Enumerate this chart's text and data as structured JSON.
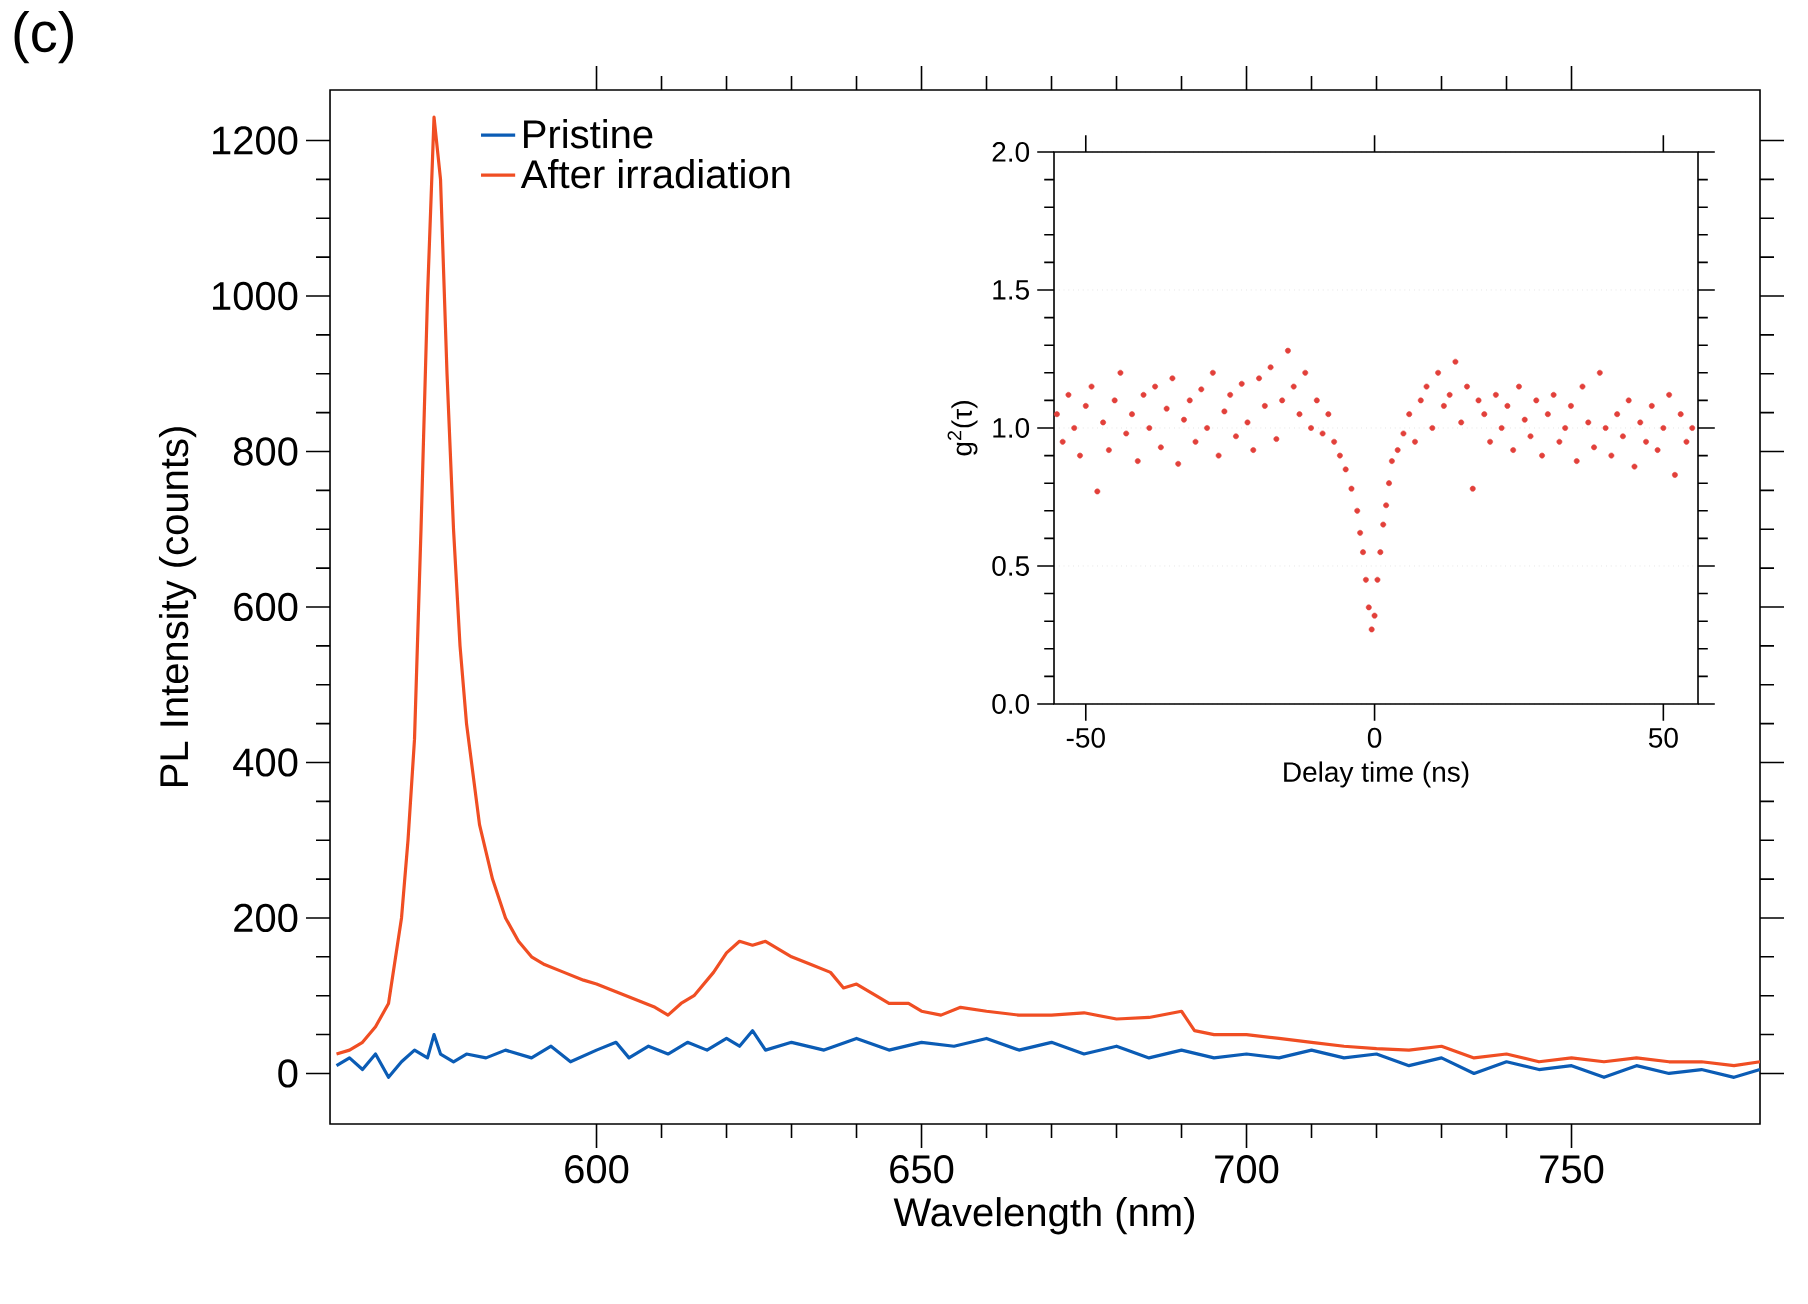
{
  "chart_data": [
    {
      "type": "line",
      "xlabel": "Wavelength (nm)",
      "ylabel": "PL Intensity (counts)",
      "annotations": [
        "(c)"
      ],
      "xlim": [
        559,
        779
      ],
      "ylim": [
        -65,
        1265
      ],
      "xticks": [
        600,
        650,
        700,
        750
      ],
      "yticks": [
        0,
        200,
        400,
        600,
        800,
        1000,
        1200
      ],
      "legend": "top left",
      "series": [
        {
          "name": "Pristine",
          "color": "#0b5cb5",
          "x": [
            560,
            562,
            564,
            566,
            568,
            570,
            572,
            574,
            575,
            576,
            578,
            580,
            583,
            586,
            590,
            593,
            596,
            600,
            603,
            605,
            608,
            611,
            614,
            617,
            620,
            622,
            624,
            626,
            630,
            635,
            640,
            645,
            650,
            655,
            660,
            665,
            670,
            675,
            680,
            685,
            690,
            695,
            700,
            705,
            710,
            715,
            720,
            725,
            730,
            735,
            740,
            745,
            750,
            755,
            760,
            765,
            770,
            775,
            779
          ],
          "values": [
            10,
            20,
            5,
            25,
            -5,
            15,
            30,
            20,
            50,
            25,
            15,
            25,
            20,
            30,
            20,
            35,
            15,
            30,
            40,
            20,
            35,
            25,
            40,
            30,
            45,
            35,
            55,
            30,
            40,
            30,
            45,
            30,
            40,
            35,
            45,
            30,
            40,
            25,
            35,
            20,
            30,
            20,
            25,
            20,
            30,
            20,
            25,
            10,
            20,
            0,
            15,
            5,
            10,
            -5,
            10,
            0,
            5,
            -5,
            5
          ]
        },
        {
          "name": "After irradiation",
          "color": "#f04e23",
          "x": [
            560,
            562,
            564,
            566,
            568,
            570,
            571,
            572,
            573,
            574,
            575,
            576,
            577,
            578,
            579,
            580,
            582,
            584,
            586,
            588,
            590,
            592,
            595,
            598,
            600,
            603,
            606,
            609,
            611,
            613,
            615,
            618,
            620,
            622,
            624,
            626,
            628,
            630,
            633,
            636,
            638,
            640,
            643,
            645,
            648,
            650,
            653,
            656,
            660,
            665,
            670,
            675,
            680,
            685,
            690,
            692,
            695,
            700,
            705,
            710,
            715,
            720,
            725,
            730,
            735,
            740,
            745,
            750,
            755,
            760,
            765,
            770,
            775,
            779
          ],
          "values": [
            25,
            30,
            40,
            60,
            90,
            200,
            300,
            430,
            700,
            1000,
            1230,
            1150,
            900,
            700,
            550,
            450,
            320,
            250,
            200,
            170,
            150,
            140,
            130,
            120,
            115,
            105,
            95,
            85,
            75,
            90,
            100,
            130,
            155,
            170,
            165,
            170,
            160,
            150,
            140,
            130,
            110,
            115,
            100,
            90,
            90,
            80,
            75,
            85,
            80,
            75,
            75,
            78,
            70,
            72,
            80,
            55,
            50,
            50,
            45,
            40,
            35,
            32,
            30,
            35,
            20,
            25,
            15,
            20,
            15,
            20,
            15,
            15,
            10,
            15
          ]
        }
      ]
    },
    {
      "type": "scatter",
      "xlabel": "Delay time (ns)",
      "ylabel": "g$^{2}$(τ)",
      "marker": "circle",
      "grid": "y",
      "xlim": [
        -55.5,
        56
      ],
      "ylim": [
        0,
        2
      ],
      "xticks": [
        -50,
        0,
        50
      ],
      "yticks": [
        {
          "value": 0,
          "label": "0.0"
        },
        0.5,
        {
          "value": 1,
          "label": "1.0"
        },
        1.5,
        {
          "value": 2,
          "label": "2.0"
        }
      ],
      "series": [
        {
          "color": "#e2403a",
          "x": [
            -55,
            -54,
            -53,
            -52,
            -51,
            -50,
            -49,
            -48,
            -47,
            -46,
            -45,
            -44,
            -43,
            -42,
            -41,
            -40,
            -39,
            -38,
            -37,
            -36,
            -35,
            -34,
            -33,
            -32,
            -31,
            -30,
            -29,
            -28,
            -27,
            -26,
            -25,
            -24,
            -23,
            -22,
            -21,
            -20,
            -19,
            -18,
            -17,
            -16,
            -15,
            -14,
            -13,
            -12,
            -11,
            -10,
            -9,
            -8,
            -7,
            -6,
            -5,
            -4,
            -3,
            -2.5,
            -2,
            -1.5,
            -1,
            -0.5,
            0,
            0.5,
            1,
            1.5,
            2,
            2.5,
            3,
            4,
            5,
            6,
            7,
            8,
            9,
            10,
            11,
            12,
            13,
            14,
            15,
            16,
            17,
            18,
            19,
            20,
            21,
            22,
            23,
            24,
            25,
            26,
            27,
            28,
            29,
            30,
            31,
            32,
            33,
            34,
            35,
            36,
            37,
            38,
            39,
            40,
            41,
            42,
            43,
            44,
            45,
            46,
            47,
            48,
            49,
            50,
            51,
            52,
            53,
            54,
            55
          ],
          "values": [
            1.05,
            0.95,
            1.12,
            1.0,
            0.9,
            1.08,
            1.15,
            0.77,
            1.02,
            0.92,
            1.1,
            1.2,
            0.98,
            1.05,
            0.88,
            1.12,
            1.0,
            1.15,
            0.93,
            1.07,
            1.18,
            0.87,
            1.03,
            1.1,
            0.95,
            1.14,
            1.0,
            1.2,
            0.9,
            1.06,
            1.12,
            0.97,
            1.16,
            1.02,
            0.92,
            1.18,
            1.08,
            1.22,
            0.96,
            1.1,
            1.28,
            1.15,
            1.05,
            1.2,
            1.0,
            1.1,
            0.98,
            1.05,
            0.95,
            0.9,
            0.85,
            0.78,
            0.7,
            0.62,
            0.55,
            0.45,
            0.35,
            0.27,
            0.32,
            0.45,
            0.55,
            0.65,
            0.72,
            0.8,
            0.88,
            0.92,
            0.98,
            1.05,
            0.95,
            1.1,
            1.15,
            1.0,
            1.2,
            1.08,
            1.12,
            1.24,
            1.02,
            1.15,
            0.78,
            1.1,
            1.05,
            0.95,
            1.12,
            1.0,
            1.08,
            0.92,
            1.15,
            1.03,
            0.97,
            1.1,
            0.9,
            1.05,
            1.12,
            0.95,
            1.0,
            1.08,
            0.88,
            1.15,
            1.02,
            0.93,
            1.2,
            1.0,
            0.9,
            1.05,
            0.97,
            1.1,
            0.86,
            1.02,
            0.95,
            1.08,
            0.92,
            1.0,
            1.12,
            0.83,
            1.05,
            0.95,
            1.0
          ]
        }
      ]
    }
  ]
}
